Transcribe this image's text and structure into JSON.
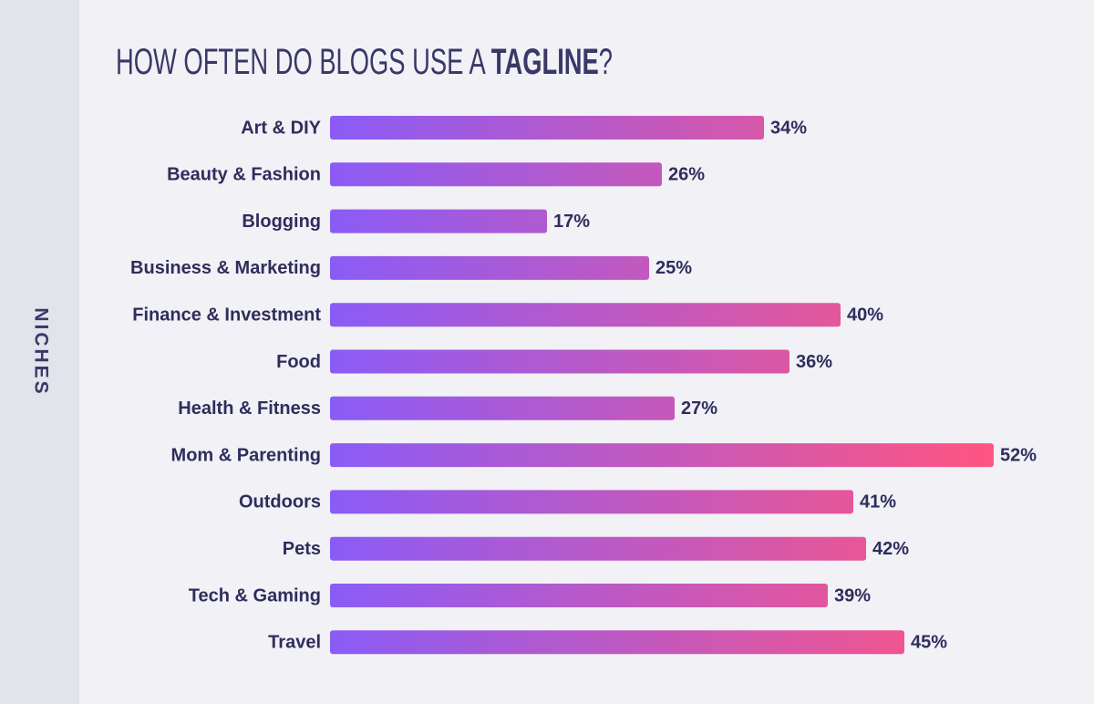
{
  "chart_data": {
    "type": "bar",
    "orientation": "horizontal",
    "title": [
      "HOW OFTEN DO BLOGS USE A ",
      "TAGLINE",
      "?"
    ],
    "y_label": "NICHES",
    "categories": [
      "Art & DIY",
      "Beauty & Fashion",
      "Blogging",
      "Business & Marketing",
      "Finance & Investment",
      "Food",
      "Health & Fitness",
      "Mom & Parenting",
      "Outdoors",
      "Pets",
      "Tech & Gaming",
      "Travel"
    ],
    "values": [
      34,
      26,
      17,
      25,
      40,
      36,
      27,
      52,
      41,
      42,
      39,
      45
    ],
    "value_labels": [
      "34%",
      "26%",
      "17%",
      "25%",
      "40%",
      "36%",
      "27%",
      "52%",
      "41%",
      "42%",
      "39%",
      "45%"
    ],
    "gradient": [
      "#8a5cf6",
      "#ff5581"
    ]
  }
}
